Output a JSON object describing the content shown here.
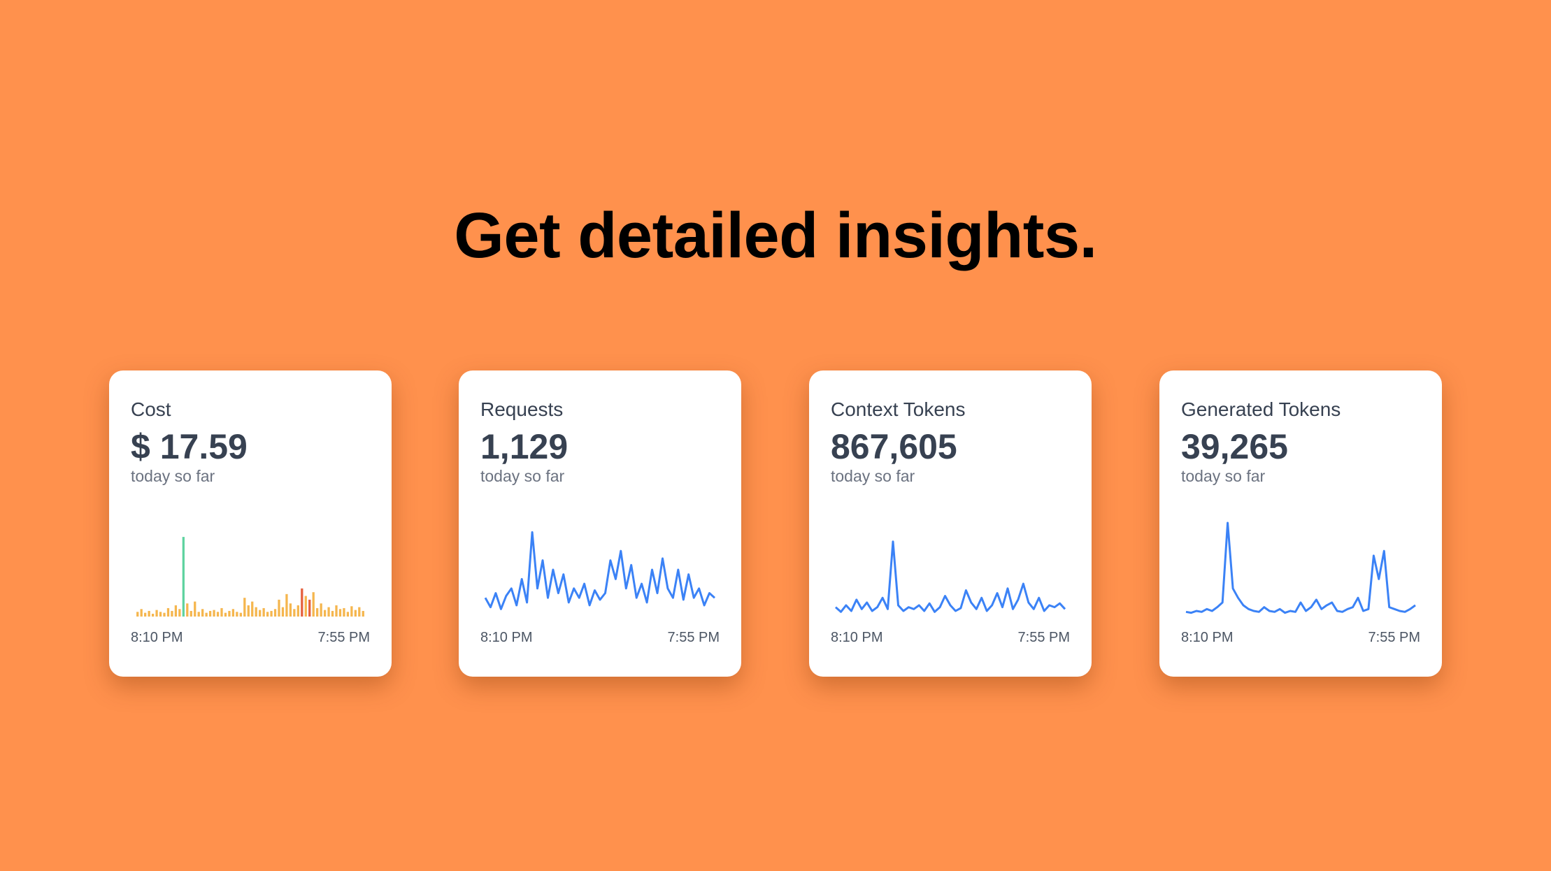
{
  "title": "Get detailed insights.",
  "cards": [
    {
      "label": "Cost",
      "value": "$ 17.59",
      "note": "today so far",
      "chart": {
        "type": "bar",
        "ylim": [
          0,
          100
        ],
        "x_labels": [
          "8:10 PM",
          "7:55 PM"
        ],
        "values": [
          5,
          8,
          4,
          6,
          3,
          7,
          5,
          4,
          9,
          6,
          12,
          8,
          85,
          14,
          6,
          16,
          5,
          8,
          4,
          6,
          7,
          5,
          9,
          4,
          6,
          8,
          5,
          4,
          20,
          12,
          16,
          10,
          7,
          9,
          5,
          6,
          8,
          18,
          10,
          24,
          14,
          8,
          12,
          30,
          22,
          18,
          26,
          9,
          14,
          7,
          10,
          6,
          12,
          8,
          9,
          5,
          11,
          7,
          10,
          6
        ],
        "colors": [
          "#f5b64e",
          "#f5b64e",
          "#f5b64e",
          "#f5b64e",
          "#f5b64e",
          "#f5b64e",
          "#f5b64e",
          "#f5b64e",
          "#f5b64e",
          "#f5b64e",
          "#f5b64e",
          "#f5b64e",
          "#5fd3a0",
          "#f5b64e",
          "#f5b64e",
          "#f5b64e",
          "#f5b64e",
          "#f5b64e",
          "#f5b64e",
          "#f5b64e",
          "#f5b64e",
          "#f5b64e",
          "#f5b64e",
          "#f5b64e",
          "#f5b64e",
          "#f5b64e",
          "#f5b64e",
          "#f5b64e",
          "#f5b64e",
          "#f5b64e",
          "#f5b64e",
          "#f5b64e",
          "#f5b64e",
          "#f5b64e",
          "#f5b64e",
          "#f5b64e",
          "#f5b64e",
          "#f5b64e",
          "#f5b64e",
          "#f5b64e",
          "#f5b64e",
          "#f5b64e",
          "#f5b64e",
          "#e5603d",
          "#f5b64e",
          "#e5603d",
          "#f5b64e",
          "#f5b64e",
          "#f5b64e",
          "#f5b64e",
          "#f5b64e",
          "#f5b64e",
          "#f5b64e",
          "#f5b64e",
          "#f5b64e",
          "#f5b64e",
          "#f5b64e",
          "#f5b64e",
          "#f5b64e",
          "#f5b64e"
        ]
      }
    },
    {
      "label": "Requests",
      "value": "1,129",
      "note": "today so far",
      "chart": {
        "type": "line",
        "color": "#3b82f6",
        "ylim": [
          0,
          100
        ],
        "x_labels": [
          "8:10 PM",
          "7:55 PM"
        ],
        "values": [
          20,
          10,
          25,
          8,
          22,
          30,
          12,
          40,
          15,
          90,
          30,
          60,
          20,
          50,
          25,
          45,
          15,
          30,
          20,
          35,
          12,
          28,
          18,
          25,
          60,
          40,
          70,
          30,
          55,
          20,
          35,
          15,
          50,
          25,
          62,
          30,
          20,
          50,
          18,
          45,
          20,
          30,
          12,
          25,
          20
        ]
      }
    },
    {
      "label": "Context Tokens",
      "value": "867,605",
      "note": "today so far",
      "chart": {
        "type": "line",
        "color": "#3b82f6",
        "ylim": [
          0,
          100
        ],
        "x_labels": [
          "8:10 PM",
          "7:55 PM"
        ],
        "values": [
          10,
          5,
          12,
          6,
          18,
          8,
          15,
          6,
          10,
          20,
          8,
          80,
          12,
          6,
          10,
          8,
          12,
          6,
          14,
          5,
          10,
          22,
          12,
          6,
          9,
          28,
          15,
          8,
          20,
          6,
          12,
          25,
          10,
          30,
          8,
          18,
          35,
          15,
          8,
          20,
          6,
          12,
          10,
          14,
          8
        ]
      }
    },
    {
      "label": "Generated Tokens",
      "value": "39,265",
      "note": "today so far",
      "chart": {
        "type": "line",
        "color": "#3b82f6",
        "ylim": [
          0,
          100
        ],
        "x_labels": [
          "8:10 PM",
          "7:55 PM"
        ],
        "values": [
          5,
          4,
          6,
          5,
          8,
          6,
          10,
          15,
          100,
          30,
          20,
          12,
          8,
          6,
          5,
          10,
          6,
          5,
          8,
          4,
          6,
          5,
          15,
          6,
          10,
          18,
          8,
          12,
          15,
          6,
          5,
          8,
          10,
          20,
          6,
          8,
          65,
          40,
          70,
          10,
          8,
          6,
          5,
          8,
          12
        ]
      }
    }
  ]
}
